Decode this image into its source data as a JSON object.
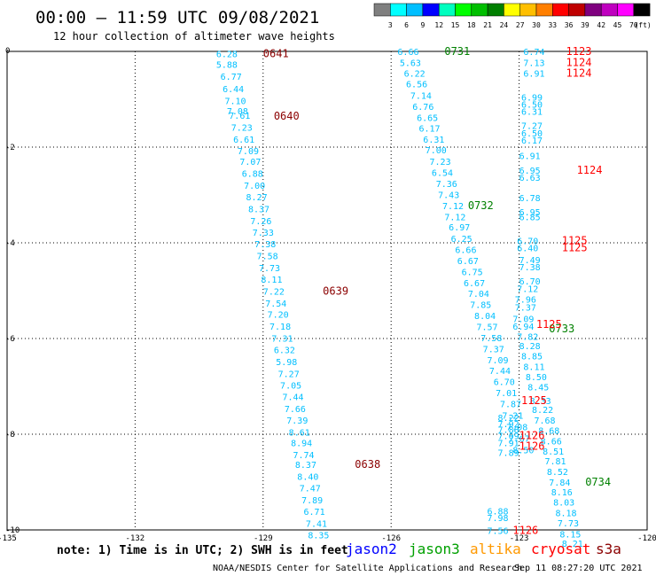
{
  "header": {
    "title": "00:00 – 11:59 UTC 09/08/2021",
    "subtitle": "12 hour collection of altimeter wave heights"
  },
  "colorbar": {
    "labels": [
      "3",
      "6",
      "9",
      "12",
      "15",
      "18",
      "21",
      "24",
      "27",
      "30",
      "33",
      "36",
      "39",
      "42",
      "45",
      "70",
      "(ft)"
    ],
    "colors": [
      "#7f7f7f",
      "#00ffff",
      "#00bfff",
      "#0000ff",
      "#00ffbf",
      "#00ff00",
      "#00bf00",
      "#007f00",
      "#ffff00",
      "#ffbf00",
      "#ff7f00",
      "#ff0000",
      "#bf0000",
      "#7f007f",
      "#bf00bf",
      "#ff00ff",
      "#000000"
    ]
  },
  "footer": {
    "note": "note: 1) Time is in UTC; 2) SWH is in feet",
    "credit": "NOAA/NESDIS Center for Satellite Applications and Research",
    "timestamp": "Sep 11 08:27:20 UTC 2021",
    "legend": [
      {
        "label": "jason2",
        "color": "#0000ff"
      },
      {
        "label": "jason3",
        "color": "#00a000"
      },
      {
        "label": "altika",
        "color": "#ff9900"
      },
      {
        "label": "cryosat",
        "color": "#ff0000"
      },
      {
        "label": "s3a",
        "color": "#8b0000"
      }
    ]
  },
  "chart_data": {
    "type": "scatter",
    "xlim": [
      -135,
      -120
    ],
    "ylim": [
      -10,
      0
    ],
    "xticks": [
      "-135",
      "-132",
      "-129",
      "-126",
      "-123",
      "-120"
    ],
    "xtick_values": [
      -135,
      -132,
      -129,
      -126,
      -123,
      -120
    ],
    "yticks": [
      "0",
      "-2",
      "-4",
      "-6",
      "-8",
      "-10"
    ],
    "ytick_values": [
      0,
      -2,
      -4,
      -6,
      -8,
      -10
    ],
    "grid": true,
    "series": [
      {
        "color": "#00bfff",
        "points": [
          {
            "x": -130.1,
            "y": -0.05,
            "v": "6.28"
          },
          {
            "x": -130.1,
            "y": -0.27,
            "v": "5.88"
          },
          {
            "x": -130.0,
            "y": -0.52,
            "v": "6.77"
          },
          {
            "x": -129.95,
            "y": -0.78,
            "v": "6.44"
          },
          {
            "x": -129.9,
            "y": -1.03,
            "v": "7.10"
          },
          {
            "x": -129.85,
            "y": -1.24,
            "v": "7.08"
          },
          {
            "x": -129.8,
            "y": -1.33,
            "v": "7.61"
          },
          {
            "x": -129.75,
            "y": -1.58,
            "v": "7.23"
          },
          {
            "x": -129.7,
            "y": -1.83,
            "v": "6.61"
          },
          {
            "x": -129.6,
            "y": -2.07,
            "v": "7.09"
          },
          {
            "x": -129.55,
            "y": -2.3,
            "v": "7.07"
          },
          {
            "x": -129.5,
            "y": -2.55,
            "v": "6.88"
          },
          {
            "x": -129.45,
            "y": -2.8,
            "v": "7.00"
          },
          {
            "x": -129.4,
            "y": -3.04,
            "v": "8.27"
          },
          {
            "x": -129.35,
            "y": -3.29,
            "v": "8.37"
          },
          {
            "x": -129.3,
            "y": -3.54,
            "v": "7.26"
          },
          {
            "x": -129.25,
            "y": -3.78,
            "v": "7.33"
          },
          {
            "x": -129.2,
            "y": -4.02,
            "v": "7.38"
          },
          {
            "x": -129.15,
            "y": -4.27,
            "v": "7.58"
          },
          {
            "x": -129.1,
            "y": -4.52,
            "v": "7.73"
          },
          {
            "x": -129.05,
            "y": -4.76,
            "v": "8.11"
          },
          {
            "x": -129.0,
            "y": -5.01,
            "v": "7.22"
          },
          {
            "x": -128.95,
            "y": -5.26,
            "v": "7.54"
          },
          {
            "x": -128.9,
            "y": -5.49,
            "v": "7.20"
          },
          {
            "x": -128.85,
            "y": -5.74,
            "v": "7.18"
          },
          {
            "x": -128.8,
            "y": -5.99,
            "v": "7.31"
          },
          {
            "x": -128.75,
            "y": -6.23,
            "v": "6.32"
          },
          {
            "x": -128.7,
            "y": -6.48,
            "v": "5.98"
          },
          {
            "x": -128.65,
            "y": -6.73,
            "v": "7.27"
          },
          {
            "x": -128.6,
            "y": -6.97,
            "v": "7.05"
          },
          {
            "x": -128.55,
            "y": -7.21,
            "v": "7.44"
          },
          {
            "x": -128.5,
            "y": -7.46,
            "v": "7.66"
          },
          {
            "x": -128.45,
            "y": -7.7,
            "v": "7.39"
          },
          {
            "x": -128.4,
            "y": -7.95,
            "v": "8.61"
          },
          {
            "x": -128.35,
            "y": -8.18,
            "v": "8.94"
          },
          {
            "x": -128.3,
            "y": -8.43,
            "v": "7.74"
          },
          {
            "x": -128.25,
            "y": -8.63,
            "v": "8.37"
          },
          {
            "x": -128.2,
            "y": -8.88,
            "v": "8.40"
          },
          {
            "x": -128.15,
            "y": -9.12,
            "v": "7.47"
          },
          {
            "x": -128.1,
            "y": -9.37,
            "v": "7.89"
          },
          {
            "x": -128.05,
            "y": -9.61,
            "v": "6.71"
          },
          {
            "x": -128.0,
            "y": -9.86,
            "v": "7.41"
          },
          {
            "x": -127.95,
            "y": -10.1,
            "v": "8.35"
          }
        ]
      },
      {
        "color": "#00bfff",
        "points": [
          {
            "x": -125.85,
            "y": 0.0,
            "v": "6.66"
          },
          {
            "x": -125.8,
            "y": -0.23,
            "v": "5.63"
          },
          {
            "x": -125.7,
            "y": -0.45,
            "v": "6.22"
          },
          {
            "x": -125.65,
            "y": -0.68,
            "v": "6.56"
          },
          {
            "x": -125.55,
            "y": -0.92,
            "v": "7.14"
          },
          {
            "x": -125.5,
            "y": -1.15,
            "v": "6.76"
          },
          {
            "x": -125.4,
            "y": -1.38,
            "v": "6.65"
          },
          {
            "x": -125.35,
            "y": -1.6,
            "v": "6.17"
          },
          {
            "x": -125.25,
            "y": -1.83,
            "v": "6.31"
          },
          {
            "x": -125.2,
            "y": -2.06,
            "v": "7.00"
          },
          {
            "x": -125.1,
            "y": -2.3,
            "v": "7.23"
          },
          {
            "x": -125.05,
            "y": -2.53,
            "v": "6.54"
          },
          {
            "x": -124.95,
            "y": -2.76,
            "v": "7.36"
          },
          {
            "x": -124.9,
            "y": -2.99,
            "v": "7.43"
          },
          {
            "x": -124.8,
            "y": -3.22,
            "v": "7.12"
          },
          {
            "x": -124.75,
            "y": -3.45,
            "v": "7.12"
          },
          {
            "x": -124.65,
            "y": -3.67,
            "v": "6.97"
          },
          {
            "x": -124.6,
            "y": -3.91,
            "v": "6.25"
          },
          {
            "x": -124.5,
            "y": -4.14,
            "v": "6.66"
          },
          {
            "x": -124.45,
            "y": -4.37,
            "v": "6.67"
          },
          {
            "x": -124.35,
            "y": -4.6,
            "v": "6.75"
          },
          {
            "x": -124.3,
            "y": -4.83,
            "v": "6.67"
          },
          {
            "x": -124.2,
            "y": -5.06,
            "v": "7.04"
          },
          {
            "x": -124.15,
            "y": -5.29,
            "v": "7.85"
          },
          {
            "x": -124.05,
            "y": -5.52,
            "v": "8.04"
          },
          {
            "x": -124.0,
            "y": -5.75,
            "v": "7.57"
          },
          {
            "x": -123.9,
            "y": -5.98,
            "v": "7.58"
          },
          {
            "x": -123.85,
            "y": -6.21,
            "v": "7.37"
          },
          {
            "x": -123.75,
            "y": -6.44,
            "v": "7.09"
          },
          {
            "x": -123.7,
            "y": -6.67,
            "v": "7.44"
          },
          {
            "x": -123.6,
            "y": -6.9,
            "v": "6.70"
          },
          {
            "x": -123.55,
            "y": -7.13,
            "v": "7.01"
          },
          {
            "x": -123.45,
            "y": -7.36,
            "v": "7.87"
          },
          {
            "x": -123.4,
            "y": -7.6,
            "v": "7.21"
          },
          {
            "x": -123.3,
            "y": -7.84,
            "v": "7.08"
          },
          {
            "x": -123.25,
            "y": -8.08,
            "v": "7.67"
          },
          {
            "x": -123.15,
            "y": -8.32,
            "v": "8.50"
          }
        ]
      },
      {
        "color": "#00bfff",
        "points": [
          {
            "x": -122.9,
            "y": 0.0,
            "v": "6.74"
          },
          {
            "x": -122.9,
            "y": -0.23,
            "v": "7.13"
          },
          {
            "x": -122.9,
            "y": -0.45,
            "v": "6.91"
          },
          {
            "x": -122.95,
            "y": -0.95,
            "v": "6.99"
          },
          {
            "x": -122.95,
            "y": -1.1,
            "v": "6.50"
          },
          {
            "x": -122.95,
            "y": -1.25,
            "v": "6.31"
          },
          {
            "x": -122.95,
            "y": -1.55,
            "v": "7.27"
          },
          {
            "x": -122.95,
            "y": -1.7,
            "v": "6.50"
          },
          {
            "x": -122.95,
            "y": -1.85,
            "v": "6.17"
          },
          {
            "x": -123.0,
            "y": -2.18,
            "v": "6.91"
          },
          {
            "x": -123.0,
            "y": -2.48,
            "v": "6.95"
          },
          {
            "x": -123.0,
            "y": -2.63,
            "v": "6.63"
          },
          {
            "x": -123.0,
            "y": -3.06,
            "v": "6.78"
          },
          {
            "x": -123.0,
            "y": -3.35,
            "v": "6.95"
          },
          {
            "x": -123.0,
            "y": -3.45,
            "v": "6.85"
          },
          {
            "x": -123.05,
            "y": -3.95,
            "v": "6.70"
          },
          {
            "x": -123.05,
            "y": -4.1,
            "v": "6.40"
          },
          {
            "x": -123.0,
            "y": -4.35,
            "v": "7.49"
          },
          {
            "x": -123.0,
            "y": -4.5,
            "v": "7.38"
          },
          {
            "x": -123.0,
            "y": -4.8,
            "v": "6.70"
          },
          {
            "x": -123.05,
            "y": -4.95,
            "v": "7.12"
          },
          {
            "x": -123.1,
            "y": -5.18,
            "v": "7.96"
          },
          {
            "x": -123.1,
            "y": -5.34,
            "v": "7.37"
          },
          {
            "x": -123.15,
            "y": -5.58,
            "v": "7.09"
          },
          {
            "x": -123.15,
            "y": -5.74,
            "v": "6.94"
          },
          {
            "x": -123.05,
            "y": -5.95,
            "v": "7.82"
          },
          {
            "x": -123.0,
            "y": -6.15,
            "v": "8.28"
          },
          {
            "x": -122.95,
            "y": -6.36,
            "v": "8.85"
          },
          {
            "x": -122.9,
            "y": -6.58,
            "v": "8.11"
          },
          {
            "x": -122.85,
            "y": -6.8,
            "v": "8.50"
          },
          {
            "x": -122.8,
            "y": -7.01,
            "v": "8.45"
          },
          {
            "x": -122.75,
            "y": -7.3,
            "v": "8.33"
          },
          {
            "x": -122.7,
            "y": -7.48,
            "v": "8.22"
          },
          {
            "x": -122.65,
            "y": -7.7,
            "v": "7.68"
          },
          {
            "x": -122.55,
            "y": -7.92,
            "v": "8.68"
          },
          {
            "x": -122.5,
            "y": -8.14,
            "v": "8.66"
          },
          {
            "x": -122.45,
            "y": -8.35,
            "v": "8.51"
          },
          {
            "x": -122.4,
            "y": -8.56,
            "v": "7.81"
          },
          {
            "x": -122.35,
            "y": -8.78,
            "v": "8.52"
          },
          {
            "x": -122.3,
            "y": -9.0,
            "v": "7.84"
          },
          {
            "x": -122.25,
            "y": -9.2,
            "v": "8.16"
          },
          {
            "x": -122.2,
            "y": -9.42,
            "v": "8.03"
          },
          {
            "x": -122.15,
            "y": -9.64,
            "v": "8.18"
          },
          {
            "x": -122.1,
            "y": -9.85,
            "v": "7.73"
          },
          {
            "x": -122.05,
            "y": -10.08,
            "v": "8.15"
          },
          {
            "x": -122.0,
            "y": -10.28,
            "v": "8.21"
          }
        ]
      },
      {
        "color": "#00bfff",
        "points": [
          {
            "x": -123.5,
            "y": -7.65,
            "v": "8.22"
          },
          {
            "x": -123.5,
            "y": -7.78,
            "v": "7.92"
          },
          {
            "x": -123.5,
            "y": -7.9,
            "v": "7.88"
          },
          {
            "x": -123.5,
            "y": -8.03,
            "v": "7.09"
          },
          {
            "x": -123.5,
            "y": -8.18,
            "v": "7.91"
          },
          {
            "x": -123.5,
            "y": -8.38,
            "v": "7.89"
          },
          {
            "x": -123.75,
            "y": -9.6,
            "v": "6.88"
          },
          {
            "x": -123.75,
            "y": -9.74,
            "v": "7.98"
          },
          {
            "x": -123.75,
            "y": -10.01,
            "v": "7.56"
          }
        ]
      }
    ],
    "time_labels": [
      {
        "x": -129.0,
        "y": -0.05,
        "label": "0641",
        "color": "#8b0000"
      },
      {
        "x": -128.75,
        "y": -1.35,
        "label": "0640",
        "color": "#8b0000"
      },
      {
        "x": -127.6,
        "y": -5.01,
        "label": "0639",
        "color": "#8b0000"
      },
      {
        "x": -126.85,
        "y": -8.63,
        "label": "0638",
        "color": "#8b0000"
      },
      {
        "x": -124.75,
        "y": -0.0,
        "label": "0731",
        "color": "#008000"
      },
      {
        "x": -124.2,
        "y": -3.22,
        "label": "0732",
        "color": "#008000"
      },
      {
        "x": -122.3,
        "y": -5.8,
        "label": "0733",
        "color": "#008000"
      },
      {
        "x": -121.45,
        "y": -9.0,
        "label": "0734",
        "color": "#008000"
      },
      {
        "x": -121.9,
        "y": 0.0,
        "label": "1123",
        "color": "#ff0000"
      },
      {
        "x": -121.9,
        "y": -0.23,
        "label": "1124",
        "color": "#ff0000"
      },
      {
        "x": -121.9,
        "y": -0.45,
        "label": "1124",
        "color": "#ff0000"
      },
      {
        "x": -121.65,
        "y": -2.48,
        "label": "1124",
        "color": "#ff0000"
      },
      {
        "x": -122.0,
        "y": -3.95,
        "label": "1125",
        "color": "#ff0000"
      },
      {
        "x": -122.0,
        "y": -4.1,
        "label": "1125",
        "color": "#ff0000"
      },
      {
        "x": -122.6,
        "y": -5.7,
        "label": "1125",
        "color": "#ff0000"
      },
      {
        "x": -122.95,
        "y": -7.3,
        "label": "1125",
        "color": "#ff0000"
      },
      {
        "x": -123.0,
        "y": -8.03,
        "label": "1126",
        "color": "#ff0000"
      },
      {
        "x": -123.0,
        "y": -8.25,
        "label": "1126",
        "color": "#ff0000"
      },
      {
        "x": -123.15,
        "y": -10.01,
        "label": "1126",
        "color": "#ff0000"
      }
    ]
  }
}
